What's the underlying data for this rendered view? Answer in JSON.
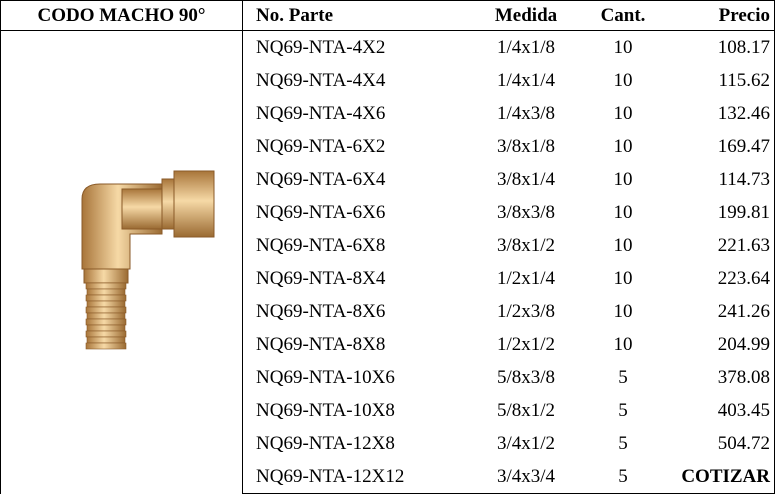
{
  "table": {
    "title": "CODO MACHO 90°",
    "columns": [
      "No. Parte",
      "Medida",
      "Cant.",
      "Precio"
    ],
    "rows": [
      [
        "NQ69-NTA-4X2",
        "1/4x1/8",
        "10",
        "108.17"
      ],
      [
        "NQ69-NTA-4X4",
        "1/4x1/4",
        "10",
        "115.62"
      ],
      [
        "NQ69-NTA-4X6",
        "1/4x3/8",
        "10",
        "132.46"
      ],
      [
        "NQ69-NTA-6X2",
        "3/8x1/8",
        "10",
        "169.47"
      ],
      [
        "NQ69-NTA-6X4",
        "3/8x1/4",
        "10",
        "114.73"
      ],
      [
        "NQ69-NTA-6X6",
        "3/8x3/8",
        "10",
        "199.81"
      ],
      [
        "NQ69-NTA-6X8",
        "3/8x1/2",
        "10",
        "221.63"
      ],
      [
        "NQ69-NTA-8X4",
        "1/2x1/4",
        "10",
        "223.64"
      ],
      [
        "NQ69-NTA-8X6",
        "1/2x3/8",
        "10",
        "241.26"
      ],
      [
        "NQ69-NTA-8X8",
        "1/2x1/2",
        "10",
        "204.99"
      ],
      [
        "NQ69-NTA-10X6",
        "5/8x3/8",
        "5",
        "378.08"
      ],
      [
        "NQ69-NTA-10X8",
        "5/8x1/2",
        "5",
        "403.45"
      ],
      [
        "NQ69-NTA-12X8",
        "3/4x1/2",
        "5",
        "504.72"
      ],
      [
        "NQ69-NTA-12X12",
        "3/4x3/4",
        "5",
        "COTIZAR"
      ]
    ]
  }
}
